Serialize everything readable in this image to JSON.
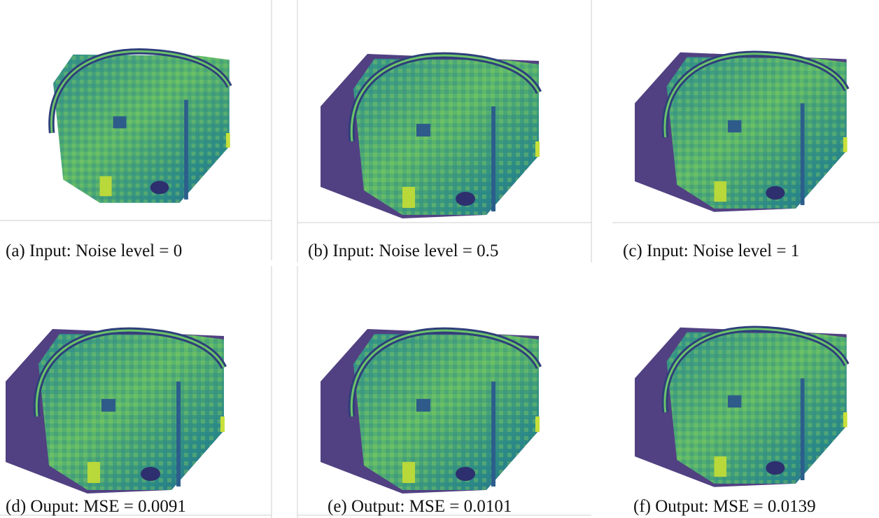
{
  "panels": [
    {
      "caption": "(a) Input: Noise level = 0"
    },
    {
      "caption": "(b) Input: Noise level = 0.5"
    },
    {
      "caption": "(c) Input: Noise level = 1"
    },
    {
      "caption": "(d) Ouput: MSE = 0.0091"
    },
    {
      "caption": "(e) Output: MSE = 0.0101"
    },
    {
      "caption": "(f) Output: MSE = 0.0139"
    }
  ]
}
